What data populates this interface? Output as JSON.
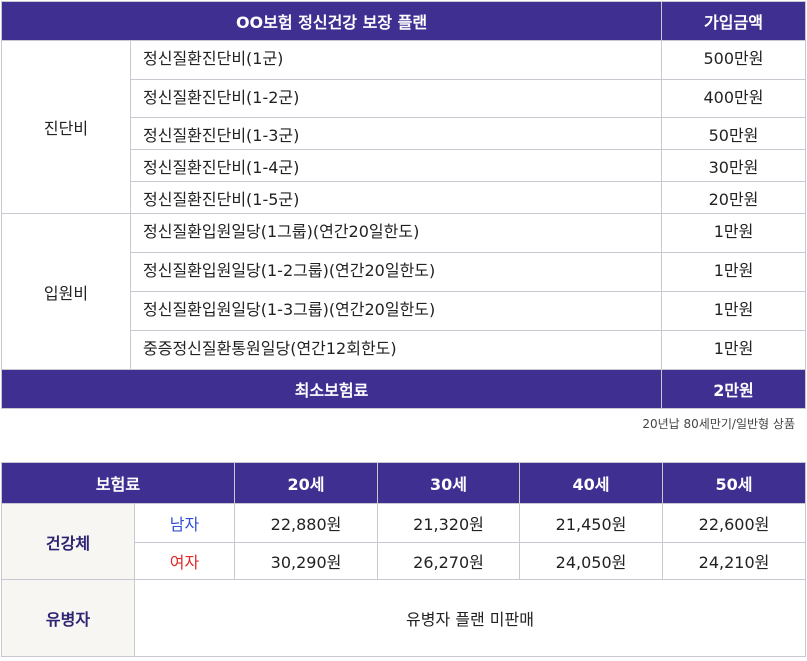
{
  "plan": {
    "header_title": "OO보험 정신건강 보장 플랜",
    "header_amount": "가입금액",
    "groups": [
      {
        "category": "진단비",
        "rows": [
          {
            "item": "정신질환진단비(1군)",
            "amount": "500만원"
          },
          {
            "item": "정신질환진단비(1-2군)",
            "amount": "400만원"
          },
          {
            "item": "정신질환진단비(1-3군)",
            "amount": "50만원"
          },
          {
            "item": "정신질환진단비(1-4군)",
            "amount": "30만원"
          },
          {
            "item": "정신질환진단비(1-5군)",
            "amount": "20만원"
          }
        ]
      },
      {
        "category": "입원비",
        "rows": [
          {
            "item": "정신질환입원일당(1그룹)(연간20일한도)",
            "amount": "1만원"
          },
          {
            "item": "정신질환입원일당(1-2그룹)(연간20일한도)",
            "amount": "1만원"
          },
          {
            "item": "정신질환입원일당(1-3그룹)(연간20일한도)",
            "amount": "1만원"
          },
          {
            "item": "중증정신질환통원일당(연간12회한도)",
            "amount": "1만원"
          }
        ]
      }
    ],
    "total_label": "최소보험료",
    "total_amount": "2만원"
  },
  "note": "20년납 80세만기/일반형  상품",
  "premium": {
    "header_label": "보험료",
    "ages": [
      "20세",
      "30세",
      "40세",
      "50세"
    ],
    "healthy_label": "건강체",
    "male_label": "남자",
    "female_label": "여자",
    "male_values": [
      "22,880원",
      "21,320원",
      "21,450원",
      "22,600원"
    ],
    "female_values": [
      "30,290원",
      "26,270원",
      "24,050원",
      "24,210원"
    ],
    "sick_label": "유병자",
    "sick_text": "유병자 플랜 미판매"
  },
  "colors": {
    "header_bg": "#3f2f91",
    "male": "#2e4fd6",
    "female": "#e02a2a"
  }
}
